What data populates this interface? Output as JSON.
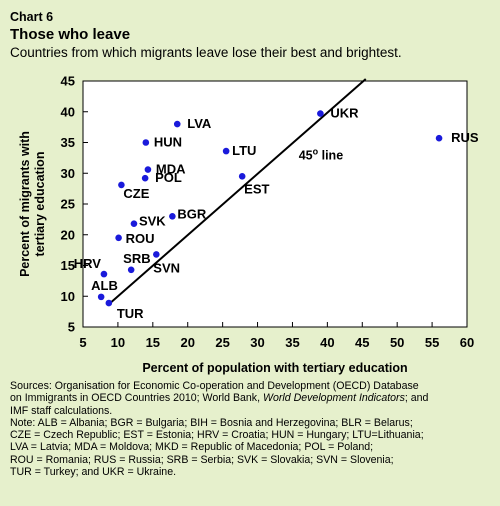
{
  "header": {
    "chart_number": "Chart 6",
    "title": "Those who leave",
    "subtitle": "Countries from which migrants leave lose their best and brightest."
  },
  "chart_data": {
    "type": "scatter",
    "xlabel": "Percent of population with tertiary education",
    "ylabel": "Percent of migrants with tertiary education",
    "xlim": [
      5,
      60
    ],
    "ylim": [
      5,
      45
    ],
    "xticks": [
      5,
      10,
      15,
      20,
      25,
      30,
      35,
      40,
      45,
      50,
      55,
      60
    ],
    "yticks": [
      5,
      10,
      15,
      20,
      25,
      30,
      35,
      40,
      45
    ],
    "grid": false,
    "point_color": "#1a1adb",
    "reference_line": {
      "label": "45° line",
      "label_base": "45",
      "label_sup": "o",
      "label_rest": " line",
      "slope": 1,
      "intercept": 0
    },
    "points": [
      {
        "label": "LVA",
        "x": 18.5,
        "y": 38.0
      },
      {
        "label": "UKR",
        "x": 39.0,
        "y": 39.7
      },
      {
        "label": "RUS",
        "x": 56.0,
        "y": 35.7
      },
      {
        "label": "HUN",
        "x": 14.0,
        "y": 35.0
      },
      {
        "label": "LTU",
        "x": 25.5,
        "y": 33.6
      },
      {
        "label": "MDA",
        "x": 14.3,
        "y": 30.6
      },
      {
        "label": "POL",
        "x": 13.9,
        "y": 29.2
      },
      {
        "label": "EST",
        "x": 27.8,
        "y": 29.5
      },
      {
        "label": "CZE",
        "x": 10.5,
        "y": 28.1
      },
      {
        "label": "BGR",
        "x": 17.8,
        "y": 23.0
      },
      {
        "label": "SVK",
        "x": 12.3,
        "y": 21.8
      },
      {
        "label": "ROU",
        "x": 10.1,
        "y": 19.5
      },
      {
        "label": "SVN",
        "x": 15.5,
        "y": 16.8
      },
      {
        "label": "HRV",
        "x": 8.0,
        "y": 13.6
      },
      {
        "label": "SRB",
        "x": 11.9,
        "y": 14.3
      },
      {
        "label": "ALB",
        "x": 7.6,
        "y": 9.9
      },
      {
        "label": "TUR",
        "x": 8.7,
        "y": 8.9
      }
    ]
  },
  "notes": {
    "sources_line1": "Sources: Organisation for Economic Co-operation and Development (OECD) Database",
    "sources_line2_pre": "on Immigrants in OECD Countries 2010; World Bank, ",
    "sources_line2_italic": "World Development Indicators",
    "sources_line2_post": "; and",
    "sources_line3": "IMF staff calculations.",
    "note_line1": "Note: ALB = Albania; BGR = Bulgaria; BIH = Bosnia and Herzegovina; BLR = Belarus;",
    "note_line2": "CZE = Czech Republic; EST = Estonia; HRV = Croatia; HUN = Hungary; LTU=Lithuania;",
    "note_line3": "LVA = Latvia; MDA = Moldova; MKD = Republic of Macedonia; POL = Poland;",
    "note_line4": "ROU = Romania; RUS = Russia; SRB = Serbia; SVK = Slovakia; SVN = Slovenia;",
    "note_line5": "TUR = Turkey; and UKR = Ukraine."
  }
}
